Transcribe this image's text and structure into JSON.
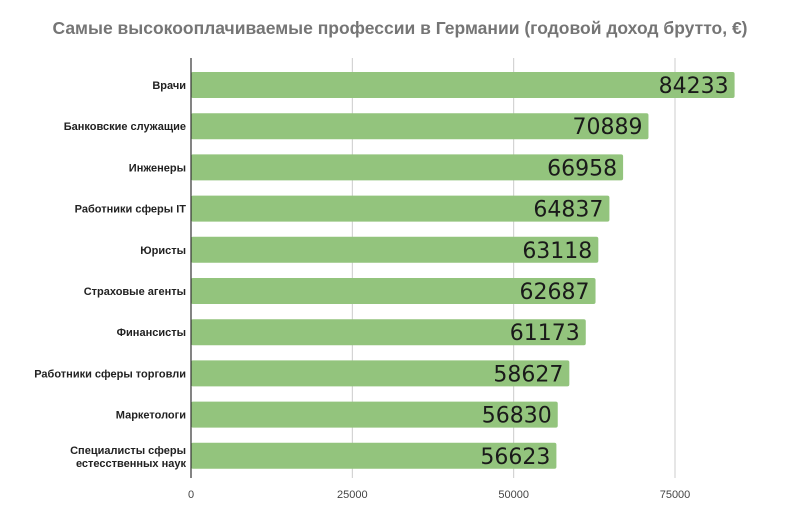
{
  "chart_data": {
    "type": "bar",
    "orientation": "horizontal",
    "title": "Самые высокооплачиваемые профессии в Германии (годовой доход брутто, €)",
    "xlabel": "",
    "ylabel": "",
    "categories": [
      "Врачи",
      "Банковские служащие",
      "Инженеры",
      "Работники сферы IT",
      "Юристы",
      "Страховые агенты",
      "Финансисты",
      "Работники сферы торговли",
      "Маркетологи",
      "Специалисты сферы естесственных наук"
    ],
    "values": [
      84233,
      70889,
      66958,
      64837,
      63118,
      62687,
      61173,
      58627,
      56830,
      56623
    ],
    "xlim": [
      0,
      85000
    ],
    "xticks": [
      "0",
      "25000",
      "50000",
      "75000"
    ],
    "grid": true,
    "legend": "none",
    "colors": {
      "bar": "#93c47d",
      "grid": "#cccccc",
      "axis": "#333333"
    }
  }
}
